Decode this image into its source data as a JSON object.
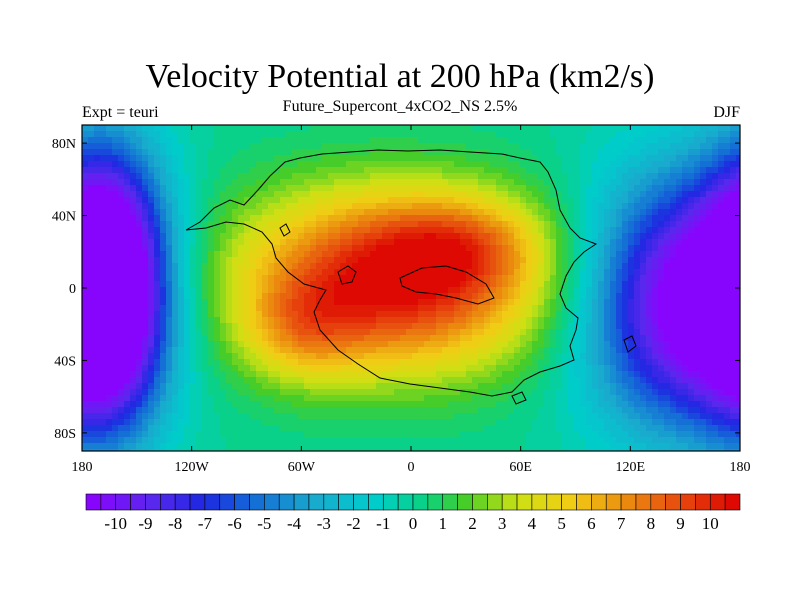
{
  "chart_data": {
    "type": "heatmap",
    "title": "Velocity Potential at 200 hPa (km2/s)",
    "subtitle": "Future_Supercont_4xCO2_NS 2.5%",
    "left_label": "Expt = teuri",
    "right_label": "DJF",
    "x_ticks": [
      "180",
      "120W",
      "60W",
      "0",
      "60E",
      "120E",
      "180"
    ],
    "x_tick_values": [
      -180,
      -120,
      -60,
      0,
      60,
      120,
      180
    ],
    "y_ticks": [
      "80N",
      "40N",
      "0",
      "40S",
      "80S"
    ],
    "y_tick_values": [
      80,
      40,
      0,
      -40,
      -80
    ],
    "xlim": [
      -180,
      180
    ],
    "ylim": [
      -90,
      90
    ],
    "colorbar_labels": [
      "-10",
      "-9",
      "-8",
      "-7",
      "-6",
      "-5",
      "-4",
      "-3",
      "-2",
      "-1",
      "0",
      "1",
      "2",
      "3",
      "4",
      "5",
      "6",
      "7",
      "8",
      "9",
      "10"
    ],
    "colorbar_min": -11,
    "colorbar_max": 11,
    "colorbar_bins": 44,
    "field_centers": [
      {
        "lon": -10,
        "lat": 5,
        "amp": 11,
        "sx": 60,
        "sy": 38
      },
      {
        "lon": 30,
        "lat": 25,
        "amp": 3,
        "sx": 30,
        "sy": 18
      },
      {
        "lon": -60,
        "lat": -25,
        "amp": 3,
        "sx": 22,
        "sy": 20
      },
      {
        "lon": 150,
        "lat": -10,
        "amp": -11.5,
        "sx": 38,
        "sy": 55
      },
      {
        "lon": -168,
        "lat": 0,
        "amp": -10.5,
        "sx": 22,
        "sy": 60
      },
      {
        "lon": 200,
        "lat": 0,
        "amp": -4,
        "sx": 25,
        "sy": 60
      }
    ]
  }
}
